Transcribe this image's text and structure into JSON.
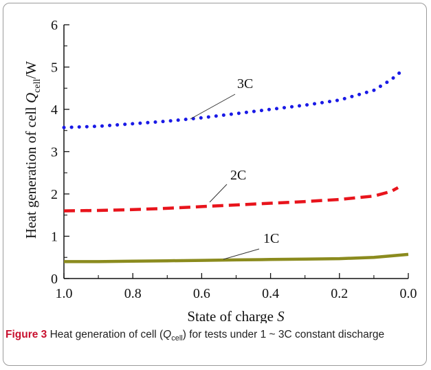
{
  "chart_data": {
    "type": "line",
    "xlabel": "State of charge ",
    "xlabel_var": "S",
    "ylabel": "Heat generation of cell ",
    "ylabel_var": "Q",
    "ylabel_sub": "cell",
    "ylabel_unit": "/W",
    "xlim": [
      1.0,
      0.0
    ],
    "ylim": [
      0,
      6
    ],
    "x_ticks": [
      "1.0",
      "0.8",
      "0.6",
      "0.4",
      "0.2",
      "0.0"
    ],
    "y_ticks": [
      "0",
      "1",
      "2",
      "3",
      "4",
      "5",
      "6"
    ],
    "x_reversed": true,
    "grid": false,
    "series": [
      {
        "name": "1C",
        "color": "#8b8b1e",
        "style": "solid",
        "x": [
          1.0,
          0.9,
          0.8,
          0.7,
          0.6,
          0.5,
          0.4,
          0.3,
          0.2,
          0.1,
          0.0
        ],
        "y": [
          0.4,
          0.4,
          0.41,
          0.42,
          0.43,
          0.44,
          0.45,
          0.46,
          0.47,
          0.5,
          0.57
        ]
      },
      {
        "name": "2C",
        "color": "#e8141c",
        "style": "dashed",
        "x": [
          1.0,
          0.9,
          0.8,
          0.7,
          0.6,
          0.5,
          0.4,
          0.3,
          0.2,
          0.1,
          0.05,
          0.03
        ],
        "y": [
          1.6,
          1.61,
          1.63,
          1.66,
          1.7,
          1.74,
          1.78,
          1.82,
          1.87,
          1.95,
          2.06,
          2.15
        ]
      },
      {
        "name": "3C",
        "color": "#1a1ae6",
        "style": "dotted",
        "x": [
          1.0,
          0.9,
          0.8,
          0.7,
          0.6,
          0.5,
          0.4,
          0.3,
          0.2,
          0.1,
          0.05,
          0.02
        ],
        "y": [
          3.57,
          3.6,
          3.66,
          3.72,
          3.8,
          3.9,
          4.0,
          4.1,
          4.22,
          4.45,
          4.7,
          4.9
        ]
      }
    ]
  },
  "caption": {
    "label": "Figure 3",
    "text_before": "  Heat generation of cell (",
    "var": "Q",
    "sub": "cell",
    "text_after": ") for tests under 1 ~ 3C constant discharge"
  }
}
